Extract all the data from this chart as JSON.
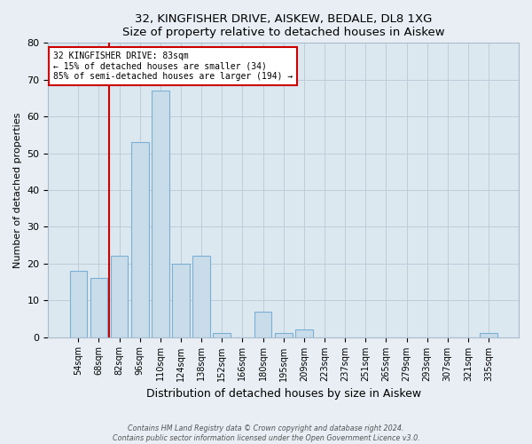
{
  "title": "32, KINGFISHER DRIVE, AISKEW, BEDALE, DL8 1XG",
  "subtitle": "Size of property relative to detached houses in Aiskew",
  "xlabel": "Distribution of detached houses by size in Aiskew",
  "ylabel": "Number of detached properties",
  "bar_labels": [
    "54sqm",
    "68sqm",
    "82sqm",
    "96sqm",
    "110sqm",
    "124sqm",
    "138sqm",
    "152sqm",
    "166sqm",
    "180sqm",
    "195sqm",
    "209sqm",
    "223sqm",
    "237sqm",
    "251sqm",
    "265sqm",
    "279sqm",
    "293sqm",
    "307sqm",
    "321sqm",
    "335sqm"
  ],
  "bar_values": [
    18,
    16,
    22,
    53,
    67,
    20,
    22,
    1,
    0,
    7,
    1,
    2,
    0,
    0,
    0,
    0,
    0,
    0,
    0,
    0,
    1
  ],
  "bar_color": "#c9dcea",
  "bar_edge_color": "#7ab0d4",
  "property_line_color": "#cc0000",
  "property_line_bar_index": 2,
  "annotation_title": "32 KINGFISHER DRIVE: 83sqm",
  "annotation_line1": "← 15% of detached houses are smaller (34)",
  "annotation_line2": "85% of semi-detached houses are larger (194) →",
  "annotation_box_color": "#ffffff",
  "annotation_box_edge": "#cc0000",
  "ylim": [
    0,
    80
  ],
  "yticks": [
    0,
    10,
    20,
    30,
    40,
    50,
    60,
    70,
    80
  ],
  "footer_line1": "Contains HM Land Registry data © Crown copyright and database right 2024.",
  "footer_line2": "Contains public sector information licensed under the Open Government Licence v3.0.",
  "background_color": "#e8eef4",
  "plot_background_color": "#dce8f0",
  "grid_color": "#c0ccd8"
}
